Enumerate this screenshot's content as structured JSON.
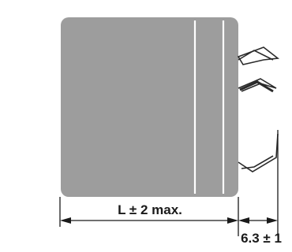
{
  "diagram": {
    "length_label": "L ± 2 max.",
    "lead_label": "6.3 ± 1",
    "colors": {
      "body": "#9d9d9d",
      "sleeve_line": "#ffffff",
      "lead": "#2a2a2a",
      "dimension": "#1a1a1a"
    }
  }
}
